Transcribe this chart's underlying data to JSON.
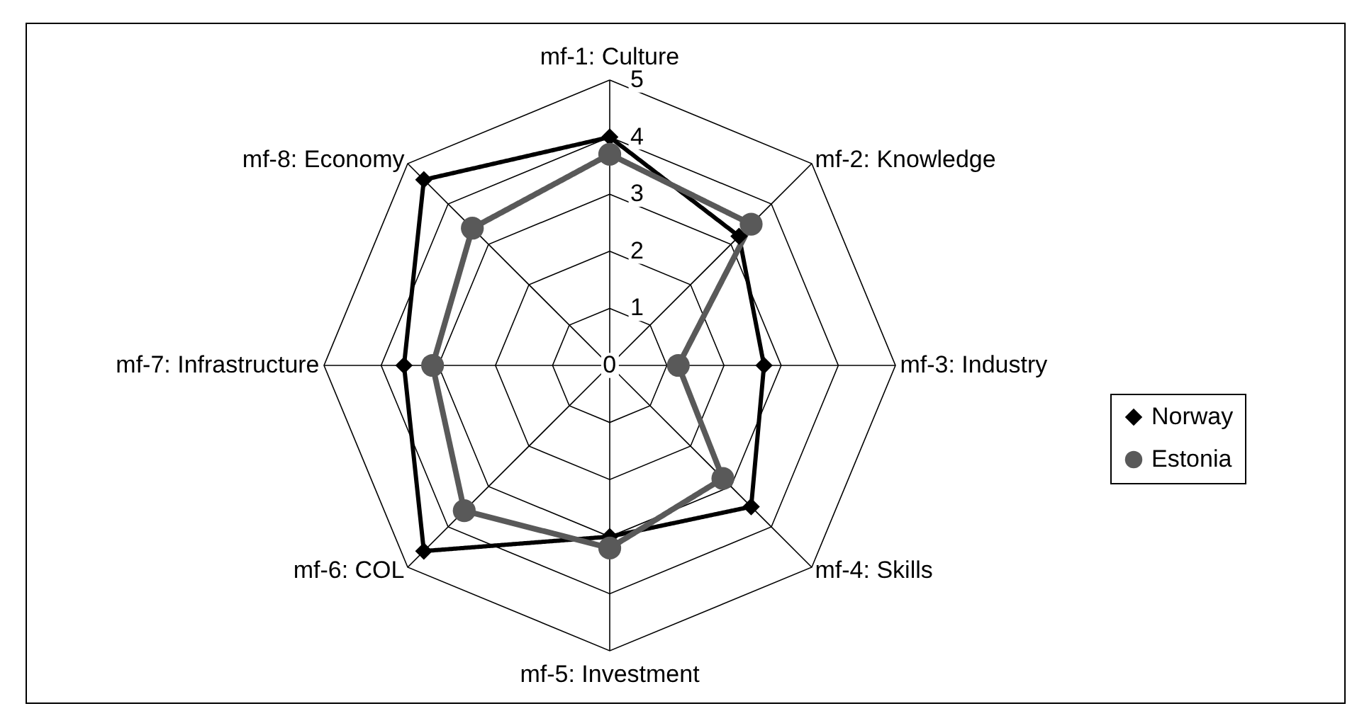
{
  "chart_data": {
    "type": "radar",
    "categories": [
      "mf-1: Culture",
      "mf-2: Knowledge",
      "mf-3: Industry",
      "mf-4: Skills",
      "mf-5: Investment",
      "mf-6: COL",
      "mf-7: Infrastructure",
      "mf-8: Economy"
    ],
    "series": [
      {
        "name": "Norway",
        "color": "#000000",
        "marker": "diamond",
        "values": [
          4.0,
          3.2,
          2.7,
          3.5,
          3.0,
          4.6,
          3.6,
          4.6
        ]
      },
      {
        "name": "Estonia",
        "color": "#595959",
        "marker": "circle",
        "values": [
          3.7,
          3.5,
          1.2,
          2.8,
          3.2,
          3.6,
          3.1,
          3.4
        ]
      }
    ],
    "ylim": [
      0,
      5
    ],
    "yticks": [
      0,
      1,
      2,
      3,
      4,
      5
    ],
    "grid": true,
    "legend": "right",
    "line_style": "solid"
  }
}
